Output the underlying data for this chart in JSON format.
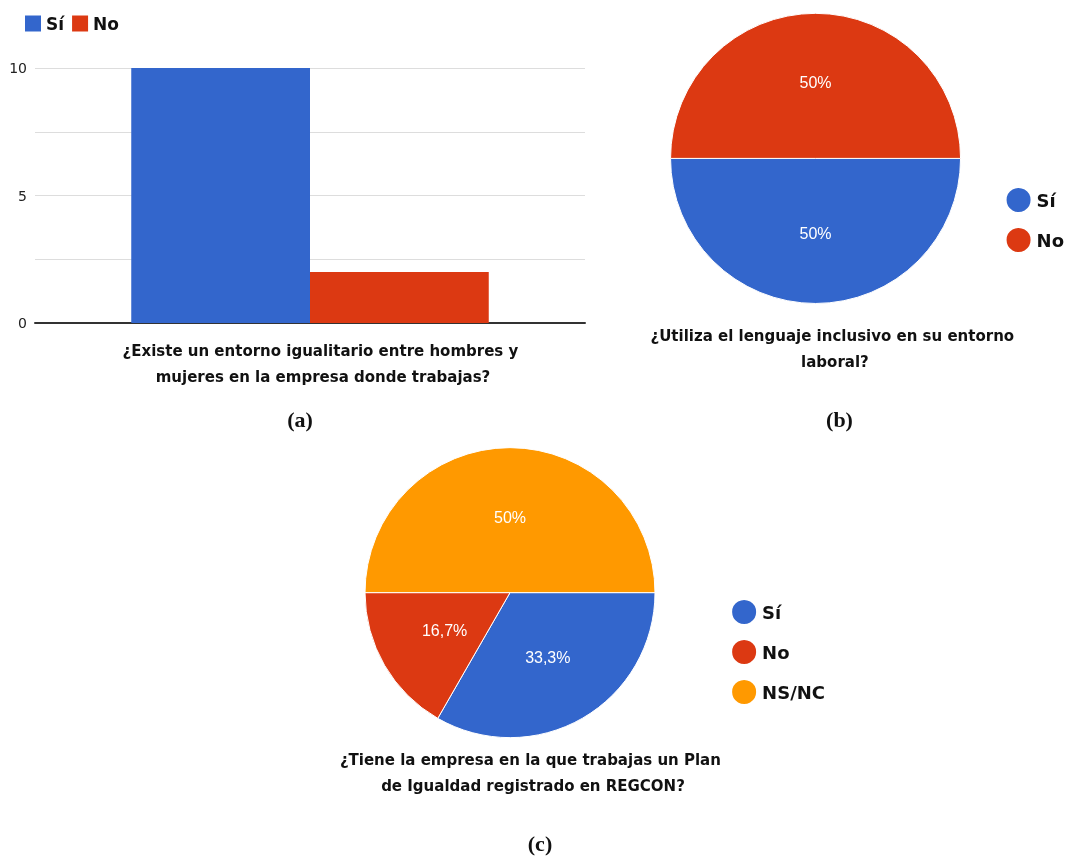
{
  "chart_data": [
    {
      "type": "bar",
      "categories": [
        null
      ],
      "xlabel": "¿Existe un entorno igualitario entre hombres y mujeres en la empresa donde trabajas?",
      "series": [
        {
          "name": "Sí",
          "color": "#3366cc",
          "values": [
            10
          ]
        },
        {
          "name": "No",
          "color": "#dc3912",
          "values": [
            2
          ]
        }
      ],
      "ylim": [
        0,
        10
      ],
      "yticks": [
        0,
        {
          "value": 2.5,
          "label": null
        },
        5,
        {
          "value": 7.5,
          "label": null
        },
        10
      ],
      "grid": "y",
      "legend": "top left",
      "annotations": [
        "(a)"
      ]
    },
    {
      "type": "pie",
      "title": "¿Utiliza el lenguaje inclusivo en su entorno laboral?",
      "categories": [
        "Sí",
        "No"
      ],
      "values": [
        50,
        50
      ],
      "colors": [
        "#3366cc",
        "#dc3912"
      ],
      "value_labels": [
        "50%",
        "50%"
      ],
      "legend": "right",
      "annotations": [
        "(b)"
      ]
    },
    {
      "type": "pie",
      "title": "¿Tiene la empresa en la que trabajas un Plan de Igualdad registrado en REGCON?",
      "categories": [
        "Sí",
        "No",
        "NS/NC"
      ],
      "values": [
        33.3,
        16.7,
        50
      ],
      "colors": [
        "#3366cc",
        "#dc3912",
        "#ff9900"
      ],
      "value_labels": [
        "33,3%",
        "16,7%",
        "50%"
      ],
      "legend": "right",
      "annotations": [
        "(c)"
      ]
    }
  ]
}
